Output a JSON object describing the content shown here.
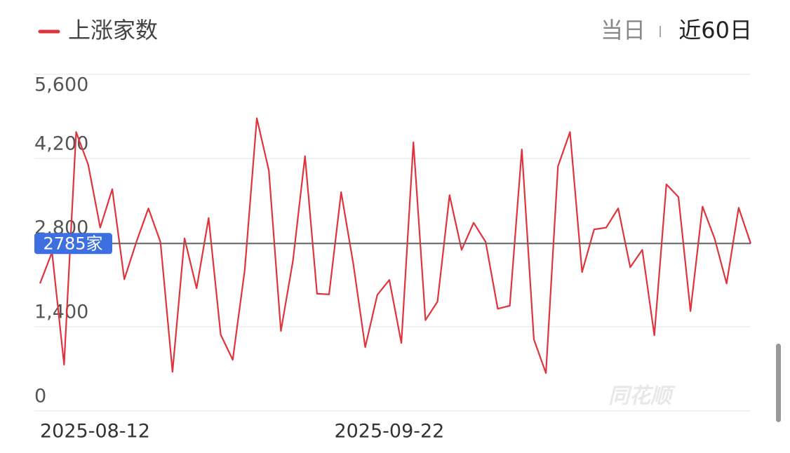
{
  "chart_data": {
    "type": "line",
    "legend": "上涨家数",
    "tabs": [
      "当日",
      "近60日"
    ],
    "active_tab": 1,
    "watermark": "同花顺",
    "categories": [
      "2025-08-12",
      null,
      null,
      null,
      null,
      null,
      null,
      null,
      null,
      null,
      null,
      null,
      null,
      null,
      null,
      null,
      null,
      null,
      null,
      null,
      null,
      null,
      null,
      null,
      null,
      null,
      null,
      null,
      null,
      "2025-09-22",
      null,
      null,
      null,
      null,
      null,
      null,
      null,
      null,
      null,
      null,
      null,
      null,
      null,
      null,
      null,
      null,
      null,
      null,
      null,
      null,
      null,
      null,
      null,
      null,
      null,
      null,
      null,
      null,
      null,
      null
    ],
    "series": [
      {
        "name": "上涨家数",
        "color": "#e0343c",
        "values": [
          2120,
          2640,
          770,
          4640,
          4100,
          3050,
          3690,
          2190,
          2810,
          3370,
          2810,
          650,
          2870,
          2040,
          3210,
          1270,
          850,
          2350,
          4870,
          4000,
          1330,
          2500,
          4240,
          1950,
          1940,
          3640,
          2460,
          1060,
          1930,
          2180,
          1130,
          4470,
          1510,
          1820,
          3590,
          2680,
          3130,
          2810,
          1700,
          1750,
          4350,
          1190,
          630,
          4070,
          4640,
          2310,
          3020,
          3050,
          3370,
          2390,
          2680,
          1260,
          3770,
          3560,
          1660,
          3400,
          2870,
          2120,
          3380,
          2785
        ]
      }
    ],
    "reference": {
      "value": 2785,
      "label": "2785家"
    },
    "ylim": [
      0,
      5600
    ],
    "yticks": [
      0,
      {
        "value": 1400,
        "label": "1,400"
      },
      {
        "value": 2800,
        "label": "2,800"
      },
      {
        "value": 4200,
        "label": "4,200"
      },
      {
        "value": 5600,
        "label": "5,600"
      }
    ],
    "grid": true
  }
}
